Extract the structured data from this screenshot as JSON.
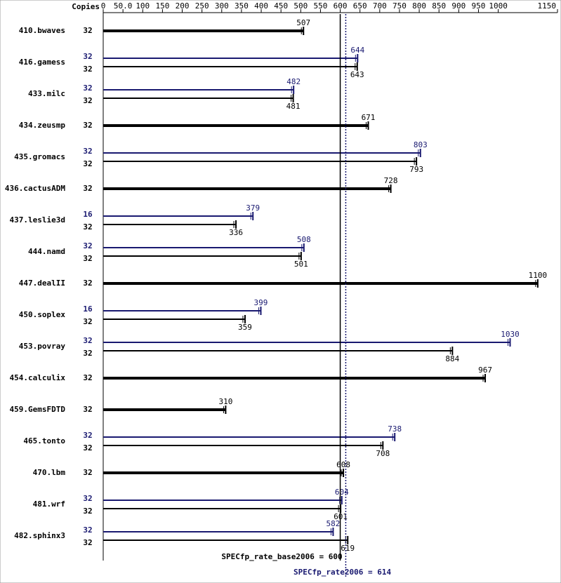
{
  "chart_data": {
    "type": "spec-bar",
    "copies_header": "Copies",
    "categories": [
      "410.bwaves",
      "416.gamess",
      "433.milc",
      "434.zeusmp",
      "435.gromacs",
      "436.cactusADM",
      "437.leslie3d",
      "444.namd",
      "447.dealII",
      "450.soplex",
      "453.povray",
      "454.calculix",
      "459.GemsFDTD",
      "465.tonto",
      "470.lbm",
      "481.wrf",
      "482.sphinx3"
    ],
    "series": [
      {
        "color": "#000000",
        "copies": [
          32,
          32,
          32,
          32,
          32,
          32,
          32,
          32,
          32,
          32,
          32,
          32,
          32,
          32,
          32,
          32,
          32
        ],
        "values": [
          507,
          643,
          481,
          671,
          793,
          728,
          336,
          501,
          1100,
          359,
          884,
          967,
          310,
          708,
          608,
          601,
          619
        ]
      },
      {
        "color": "#191970",
        "copies": [
          null,
          32,
          32,
          null,
          32,
          null,
          16,
          32,
          null,
          16,
          32,
          null,
          null,
          32,
          null,
          32,
          32
        ],
        "values": [
          null,
          644,
          482,
          null,
          803,
          null,
          379,
          508,
          null,
          399,
          1030,
          null,
          null,
          738,
          null,
          604,
          582
        ]
      }
    ],
    "xlim": [
      0,
      1150
    ],
    "xticks": [
      0,
      {
        "value": 50,
        "label": "50.0"
      },
      100,
      150,
      200,
      250,
      300,
      350,
      400,
      450,
      500,
      550,
      600,
      650,
      700,
      750,
      800,
      850,
      900,
      950,
      1000,
      1150
    ],
    "base_mean": 600,
    "base_mean_label": "SPECfp_rate_base2006 = 600",
    "peak_mean": 614,
    "peak_mean_label": "SPECfp_rate2006 = 614"
  }
}
